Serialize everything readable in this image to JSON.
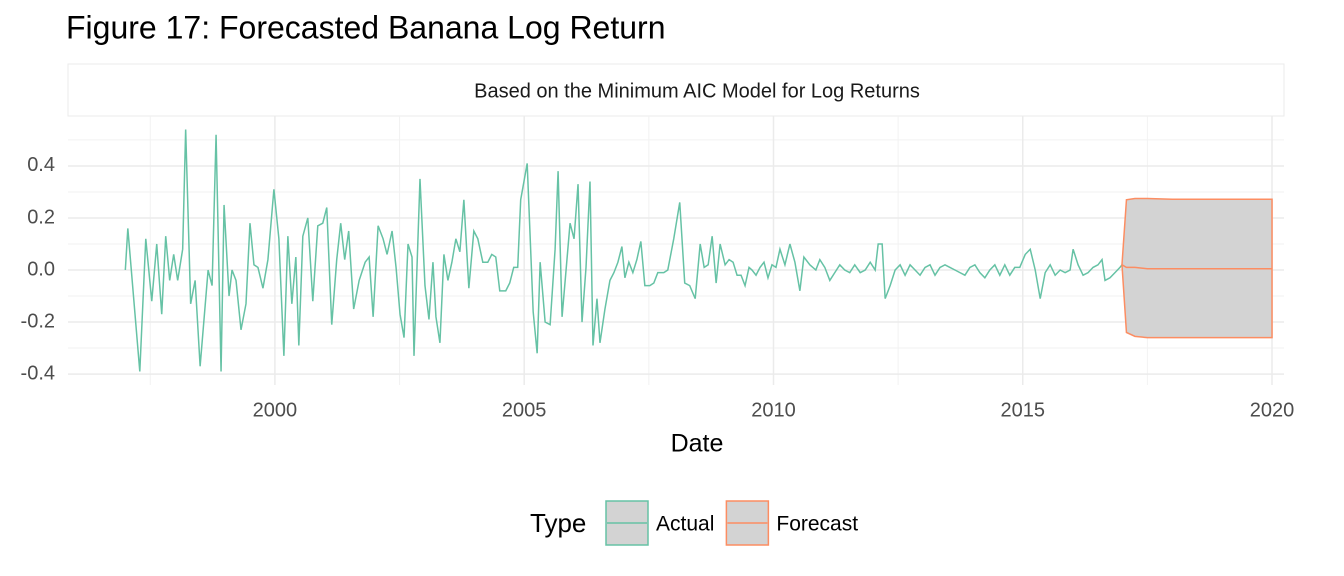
{
  "chart_data": {
    "type": "line",
    "title": "Figure 17: Forecasted Banana Log Return",
    "subtitle": "Based on the Minimum AIC Model for Log Returns",
    "x_label": "Date",
    "legend_title": "Type",
    "legend": "bottom",
    "grid": true,
    "band_color": "#d3d3d3",
    "xlim": [
      1995.85,
      2020.24
    ],
    "xticks": [
      2000,
      2005,
      2010,
      2015,
      2020
    ],
    "ylim": [
      -0.442,
      0.592
    ],
    "yticks": [
      -0.4,
      -0.2,
      {
        "value": 0,
        "label": "0.0"
      },
      0.2,
      0.4
    ],
    "series": [
      {
        "name": "Actual",
        "color": "#66c2a5",
        "x": [
          1997.0,
          1997.05,
          1997.29,
          1997.41,
          1997.53,
          1997.63,
          1997.73,
          1997.81,
          1997.89,
          1997.97,
          1998.05,
          1998.15,
          1998.21,
          1998.31,
          1998.4,
          1998.5,
          1998.66,
          1998.74,
          1998.82,
          1998.92,
          1998.98,
          1999.08,
          1999.14,
          1999.22,
          1999.32,
          1999.42,
          1999.5,
          1999.58,
          1999.66,
          1999.76,
          1999.86,
          1999.98,
          2000.08,
          2000.18,
          2000.26,
          2000.34,
          2000.42,
          2000.48,
          2000.56,
          2000.66,
          2000.76,
          2000.86,
          2000.96,
          2001.04,
          2001.14,
          2001.24,
          2001.32,
          2001.4,
          2001.48,
          2001.58,
          2001.69,
          2001.81,
          2001.89,
          2001.97,
          2002.07,
          2002.17,
          2002.25,
          2002.35,
          2002.43,
          2002.51,
          2002.59,
          2002.67,
          2002.75,
          2002.79,
          2002.91,
          2003.01,
          2003.09,
          2003.17,
          2003.23,
          2003.31,
          2003.39,
          2003.47,
          2003.55,
          2003.63,
          2003.71,
          2003.79,
          2003.89,
          2003.99,
          2004.07,
          2004.17,
          2004.27,
          2004.35,
          2004.43,
          2004.51,
          2004.63,
          2004.71,
          2004.79,
          2004.87,
          2004.93,
          2005.06,
          2005.18,
          2005.26,
          2005.32,
          2005.42,
          2005.52,
          2005.62,
          2005.68,
          2005.76,
          2005.84,
          2005.92,
          2006.0,
          2006.08,
          2006.16,
          2006.24,
          2006.32,
          2006.38,
          2006.46,
          2006.52,
          2006.62,
          2006.72,
          2006.8,
          2006.88,
          2006.96,
          2007.02,
          2007.1,
          2007.18,
          2007.26,
          2007.34,
          2007.42,
          2007.52,
          2007.6,
          2007.68,
          2007.8,
          2007.88,
          2008.0,
          2008.12,
          2008.22,
          2008.32,
          2008.43,
          2008.53,
          2008.61,
          2008.69,
          2008.77,
          2008.85,
          2008.93,
          2009.03,
          2009.11,
          2009.19,
          2009.27,
          2009.35,
          2009.43,
          2009.51,
          2009.57,
          2009.65,
          2009.73,
          2009.81,
          2009.89,
          2009.97,
          2010.05,
          2010.13,
          2010.23,
          2010.33,
          2010.43,
          2010.53,
          2010.61,
          2010.73,
          2010.85,
          2010.93,
          2011.03,
          2011.13,
          2011.23,
          2011.33,
          2011.43,
          2011.53,
          2011.63,
          2011.74,
          2011.84,
          2011.94,
          2012.04,
          2012.1,
          2012.18,
          2012.24,
          2012.34,
          2012.44,
          2012.54,
          2012.64,
          2012.74,
          2012.84,
          2012.94,
          2013.04,
          2013.14,
          2013.24,
          2013.34,
          2013.44,
          2013.54,
          2013.64,
          2013.74,
          2013.84,
          2013.94,
          2014.04,
          2014.14,
          2014.24,
          2014.34,
          2014.44,
          2014.54,
          2014.64,
          2014.74,
          2014.84,
          2014.94,
          2015.05,
          2015.15,
          2015.25,
          2015.35,
          2015.45,
          2015.55,
          2015.65,
          2015.75,
          2015.85,
          2015.95,
          2016.01,
          2016.11,
          2016.21,
          2016.31,
          2016.41,
          2016.51,
          2016.59,
          2016.65,
          2016.75,
          2016.85,
          2016.95,
          2016.99
        ],
        "values": [
          0.0,
          0.16,
          -0.39,
          0.12,
          -0.12,
          0.1,
          -0.17,
          0.13,
          -0.04,
          0.06,
          -0.04,
          0.08,
          0.54,
          -0.13,
          -0.04,
          -0.37,
          0.0,
          -0.06,
          0.52,
          -0.39,
          0.25,
          -0.1,
          0.0,
          -0.04,
          -0.23,
          -0.13,
          0.18,
          0.02,
          0.01,
          -0.07,
          0.04,
          0.31,
          0.12,
          -0.33,
          0.13,
          -0.13,
          0.05,
          -0.29,
          0.13,
          0.2,
          -0.12,
          0.17,
          0.18,
          0.24,
          -0.21,
          0.04,
          0.18,
          0.04,
          0.15,
          -0.15,
          -0.04,
          0.03,
          0.05,
          -0.18,
          0.17,
          0.12,
          0.06,
          0.15,
          0.01,
          -0.17,
          -0.26,
          0.1,
          0.05,
          -0.33,
          0.35,
          -0.06,
          -0.19,
          0.03,
          -0.18,
          -0.28,
          0.06,
          -0.04,
          0.03,
          0.12,
          0.07,
          0.27,
          -0.07,
          0.15,
          0.12,
          0.03,
          0.03,
          0.06,
          0.05,
          -0.08,
          -0.08,
          -0.05,
          0.01,
          0.01,
          0.27,
          0.41,
          -0.16,
          -0.32,
          0.03,
          -0.2,
          -0.21,
          0.08,
          0.38,
          -0.18,
          0.0,
          0.18,
          0.12,
          0.33,
          -0.2,
          0.01,
          0.34,
          -0.29,
          -0.11,
          -0.28,
          -0.15,
          -0.04,
          -0.01,
          0.03,
          0.09,
          -0.03,
          0.03,
          -0.01,
          0.04,
          0.11,
          -0.06,
          -0.06,
          -0.05,
          -0.01,
          -0.01,
          0.0,
          0.12,
          0.26,
          -0.05,
          -0.06,
          -0.11,
          0.1,
          0.01,
          0.02,
          0.13,
          -0.05,
          0.1,
          0.02,
          0.04,
          0.03,
          -0.02,
          -0.02,
          -0.06,
          0.01,
          0.0,
          -0.02,
          0.01,
          0.03,
          -0.03,
          0.02,
          0.01,
          0.08,
          0.02,
          0.1,
          0.03,
          -0.08,
          0.05,
          0.02,
          0.0,
          0.04,
          0.01,
          -0.04,
          -0.01,
          0.02,
          0.0,
          -0.01,
          0.02,
          -0.01,
          0.0,
          0.03,
          0.0,
          0.1,
          0.1,
          -0.11,
          -0.06,
          0.0,
          0.02,
          -0.02,
          0.02,
          0.0,
          -0.02,
          0.01,
          0.02,
          -0.02,
          0.01,
          0.02,
          0.01,
          0.0,
          -0.01,
          -0.02,
          0.01,
          0.02,
          -0.01,
          -0.03,
          0.0,
          0.02,
          -0.02,
          0.02,
          -0.02,
          0.01,
          0.01,
          0.06,
          0.08,
          0.0,
          -0.11,
          -0.01,
          0.02,
          -0.02,
          0.0,
          -0.01,
          0.0,
          0.08,
          0.02,
          -0.02,
          -0.01,
          0.01,
          0.02,
          0.04,
          -0.04,
          -0.03,
          -0.01,
          0.01,
          0.02
        ]
      },
      {
        "name": "Forecast",
        "color": "#fc8d62",
        "x": [
          2016.99,
          2017.08,
          2017.25,
          2017.5,
          2018.0,
          2019.0,
          2020.0
        ],
        "values": [
          0.02,
          0.01,
          0.01,
          0.005,
          0.005,
          0.005,
          0.005
        ],
        "lower": [
          0.02,
          -0.24,
          -0.255,
          -0.26,
          -0.26,
          -0.26,
          -0.26
        ],
        "upper": [
          0.02,
          0.27,
          0.275,
          0.275,
          0.272,
          0.272,
          0.272
        ]
      }
    ]
  }
}
